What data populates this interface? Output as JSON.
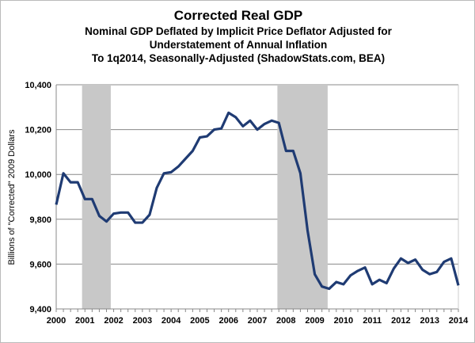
{
  "chart_data": {
    "type": "line",
    "title": "Corrected Real GDP",
    "subtitle_lines": [
      "Nominal GDP Deflated by Implicit Price Deflator Adjusted for",
      "Understatement of Annual Inflation",
      "To 1q2014, Seasonally-Adjusted (ShadowStats.com, BEA)"
    ],
    "xlabel": "",
    "ylabel": "Billions of \"Corrected\" 2009 Dollars",
    "ylim": [
      9400,
      10400
    ],
    "yticks": [
      "9,400",
      "9,600",
      "9,800",
      "10,000",
      "10,200",
      "10,400"
    ],
    "xlim": [
      2000,
      2014
    ],
    "xticks": [
      "2000",
      "2001",
      "2002",
      "2003",
      "2004",
      "2005",
      "2006",
      "2007",
      "2008",
      "2009",
      "2010",
      "2011",
      "2012",
      "2013",
      "2014"
    ],
    "grid": "horizontal",
    "line_color": "#1f3b73",
    "recession_color": "#c8c8c8",
    "recessions": [
      [
        2000.9,
        2001.9
      ],
      [
        2007.7,
        2009.45
      ]
    ],
    "x_start": "2000Q1",
    "frequency": "quarterly",
    "values": [
      9865,
      10005,
      9965,
      9965,
      9890,
      9890,
      9815,
      9790,
      9825,
      9830,
      9830,
      9785,
      9785,
      9820,
      9940,
      10005,
      10010,
      10035,
      10070,
      10105,
      10165,
      10170,
      10200,
      10205,
      10275,
      10255,
      10215,
      10240,
      10200,
      10225,
      10240,
      10230,
      10105,
      10105,
      10005,
      9750,
      9555,
      9500,
      9490,
      9520,
      9510,
      9550,
      9570,
      9585,
      9510,
      9530,
      9515,
      9580,
      9625,
      9605,
      9620,
      9575,
      9555,
      9565,
      9610,
      9625,
      9505
    ]
  }
}
